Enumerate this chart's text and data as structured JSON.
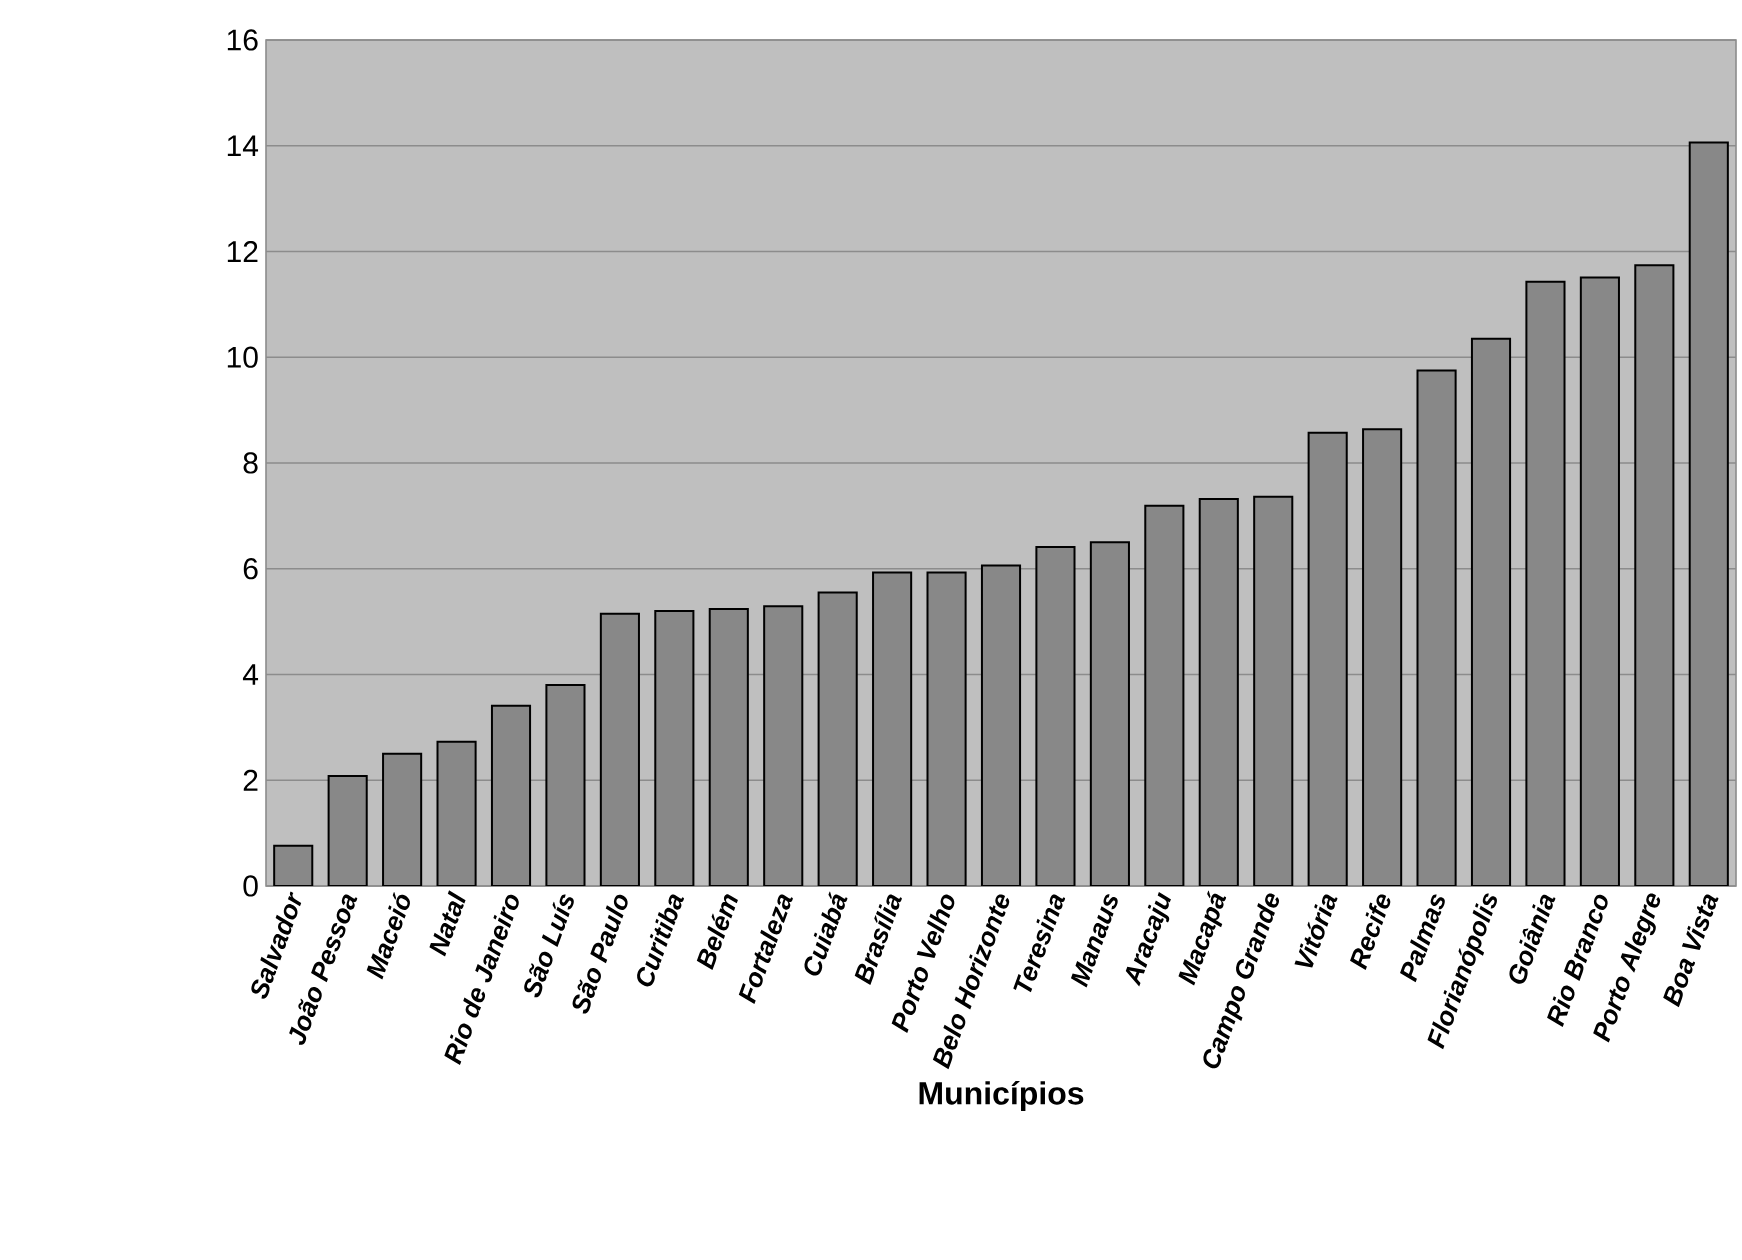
{
  "chart_data": {
    "type": "bar",
    "xlabel": "Municípios",
    "categories": [
      "Salvador",
      "João Pessoa",
      "Maceió",
      "Natal",
      "Rio de Janeiro",
      "São Luís",
      "São Paulo",
      "Curitiba",
      "Belém",
      "Fortaleza",
      "Cuiabá",
      "Brasília",
      "Porto Velho",
      "Belo Horizonte",
      "Teresina",
      "Manaus",
      "Aracaju",
      "Macapá",
      "Campo Grande",
      "Vitória",
      "Recife",
      "Palmas",
      "Florianópolis",
      "Goiânia",
      "Rio Branco",
      "Porto Alegre",
      "Boa Vista"
    ],
    "values": [
      0.76,
      2.08,
      2.5,
      2.73,
      3.41,
      3.8,
      5.15,
      5.2,
      5.24,
      5.29,
      5.55,
      5.93,
      5.93,
      6.06,
      6.41,
      6.5,
      7.19,
      7.32,
      7.36,
      8.57,
      8.64,
      9.75,
      10.35,
      11.43,
      11.51,
      11.74,
      14.06
    ],
    "color": "#888888",
    "ylim": [
      0,
      16
    ],
    "yticks": [
      0,
      2,
      4,
      6,
      8,
      10,
      12,
      14,
      16
    ],
    "grid": "y"
  }
}
